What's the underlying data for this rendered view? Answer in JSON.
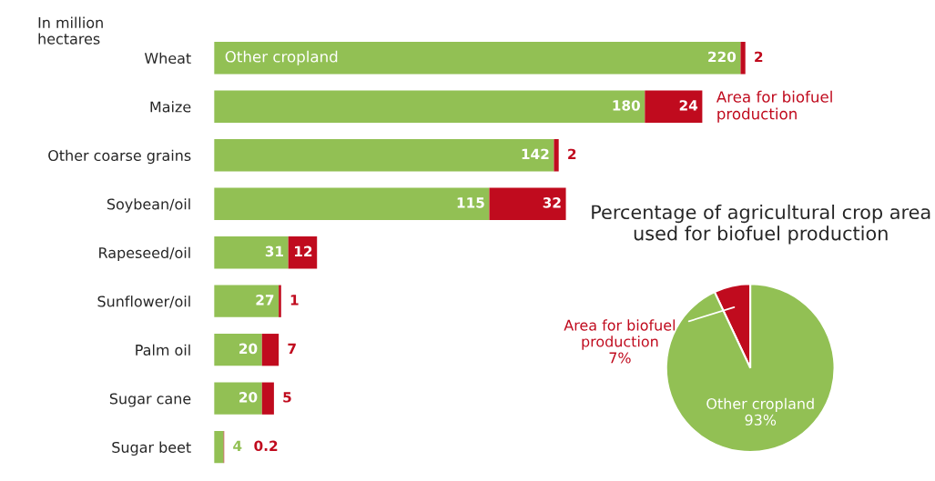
{
  "chart_data": [
    {
      "type": "bar",
      "orientation": "horizontal",
      "stacked": true,
      "data_labels": true,
      "categories": [
        "Wheat",
        "Maize",
        "Other coarse grains",
        "Soybean/oil",
        "Rapeseed/oil",
        "Sunflower/oil",
        "Palm oil",
        "Sugar cane",
        "Sugar beet"
      ],
      "series": [
        {
          "name": "Other cropland",
          "color": "#92c054",
          "values": [
            220,
            180,
            142,
            115,
            31,
            27,
            20,
            20,
            4
          ]
        },
        {
          "name": "Area for biofuel\nproduction",
          "color": "#c00b1e",
          "values": [
            2,
            24,
            2,
            32,
            12,
            1,
            7,
            5,
            0.2
          ]
        }
      ],
      "annotations": [
        "In million\nhectares"
      ]
    },
    {
      "type": "pie",
      "title": "Percentage of agricultural crop area\nused for biofuel production",
      "categories": [
        "Area for biofuel\nproduction",
        "Other cropland"
      ],
      "values": [
        7,
        93
      ],
      "value_labels": [
        "7%",
        "93%"
      ],
      "colors": [
        "#c00b1e",
        "#92c054"
      ]
    }
  ]
}
